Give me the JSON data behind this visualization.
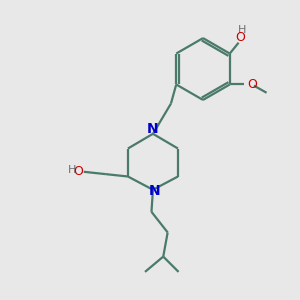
{
  "bg_color": "#e8e8e8",
  "bond_color": "#4a7a6a",
  "n_color": "#0000cc",
  "o_color": "#cc0000",
  "h_color": "#707070",
  "line_width": 1.6,
  "fig_size": [
    3.0,
    3.0
  ],
  "dpi": 100,
  "xlim": [
    0,
    10
  ],
  "ylim": [
    0,
    10
  ]
}
